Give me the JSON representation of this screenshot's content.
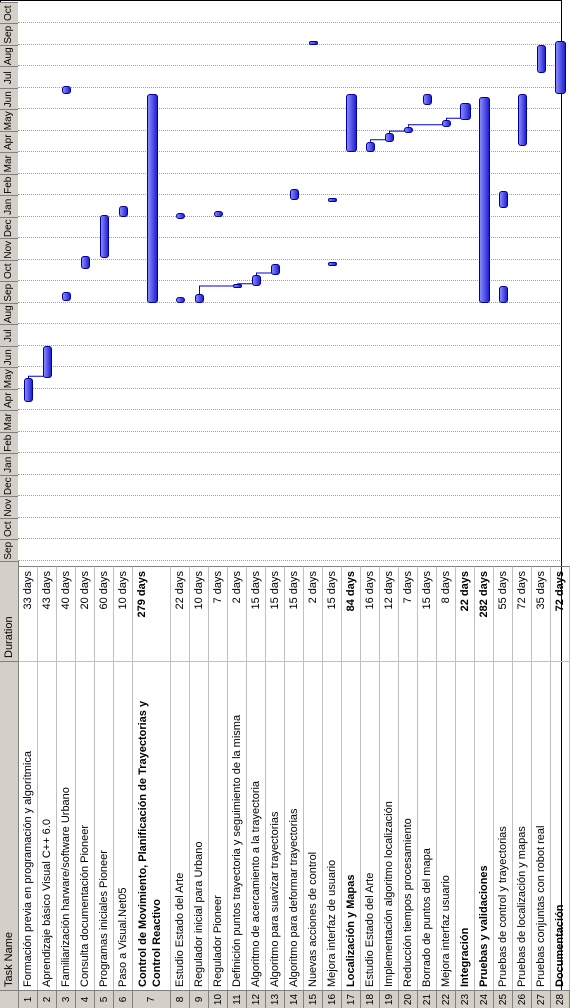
{
  "header": {
    "id": "",
    "task_name": "Task Name",
    "duration": "Duration"
  },
  "months": [
    "Sep",
    "Oct",
    "Nov",
    "Dec",
    "Jan",
    "Feb",
    "Mar",
    "Apr",
    "May",
    "Jun",
    "Jul",
    "Aug",
    "Sep",
    "Oct",
    "Nov",
    "Dec",
    "Jan",
    "Feb",
    "Mar",
    "Apr",
    "May",
    "Jun",
    "Jul",
    "Aug",
    "Sep",
    "Oct"
  ],
  "tasks": [
    {
      "id": "1",
      "name": "Formación previa en programación y algorítmica",
      "duration": "33 days",
      "start": 7.4,
      "end": 8.5
    },
    {
      "id": "2",
      "name": "Aprendizaje básico Visual C++ 6.0",
      "duration": "43 days",
      "start": 8.5,
      "end": 10.0
    },
    {
      "id": "3",
      "name": "Familiarización harware/software Urbano",
      "duration": "40 days",
      "start": 12.1,
      "end": 12.5,
      "start2": 21.7,
      "end2": 22.1
    },
    {
      "id": "4",
      "name": "Consulta documentación Pioneer",
      "duration": "20 days",
      "start": 13.6,
      "end": 14.2
    },
    {
      "id": "5",
      "name": "Programas iniciales Pioneer",
      "duration": "60 days",
      "start": 14.1,
      "end": 16.1
    },
    {
      "id": "6",
      "name": "Paso a Visual.Net05",
      "duration": "10 days",
      "start": 16.0,
      "end": 16.5
    },
    {
      "id": "7",
      "name": "Control de Movimiento, Planificación de Trayectorias y Control Reactivo",
      "duration": "279 days",
      "start": 12.0,
      "end": 21.7
    },
    {
      "id": "8",
      "name": "Estudio Estado del Arte",
      "duration": "22 days",
      "start": 12.0,
      "end": 12.3,
      "start2": 15.9,
      "end2": 16.2
    },
    {
      "id": "9",
      "name": "Regulador inicial para Urbano",
      "duration": "10 days",
      "start": 12.0,
      "end": 12.4
    },
    {
      "id": "10",
      "name": "Regulador Pioneer",
      "duration": "7 days",
      "start": 16.0,
      "end": 16.3
    },
    {
      "id": "11",
      "name": "Definición puntos trayectoria y seguimiento de la misma",
      "duration": "2 days",
      "start": 12.7,
      "end": 12.9
    },
    {
      "id": "12",
      "name": "Algoritmo de acercamiento a la trayectoria",
      "duration": "15 days",
      "start": 12.8,
      "end": 13.3
    },
    {
      "id": "13",
      "name": "Algoritmo para suavizar trayectorias",
      "duration": "15 days",
      "start": 13.3,
      "end": 13.8
    },
    {
      "id": "14",
      "name": "Algoritmo para deformar trayectorias",
      "duration": "15 days",
      "start": 16.8,
      "end": 17.3
    },
    {
      "id": "15",
      "name": "Nuevas acciones de control",
      "duration": "2 days",
      "start": 24.0,
      "end": 24.2
    },
    {
      "id": "16",
      "name": "Mejora interfaz de usuario",
      "duration": "15 days",
      "start": 13.7,
      "end": 13.9,
      "start2": 16.7,
      "end2": 16.9
    },
    {
      "id": "17",
      "name": "Localización y Mapas",
      "duration": "84 days",
      "start": 19.0,
      "end": 21.7
    },
    {
      "id": "18",
      "name": "Estudio Estado del Arte",
      "duration": "16 days",
      "start": 19.0,
      "end": 19.5
    },
    {
      "id": "19",
      "name": "Implementación algoritmo localización",
      "duration": "12 days",
      "start": 19.5,
      "end": 19.9
    },
    {
      "id": "20",
      "name": "Reducción tiempos procesamiento",
      "duration": "7 days",
      "start": 19.9,
      "end": 20.2
    },
    {
      "id": "21",
      "name": "Borrado de puntos del mapa",
      "duration": "15 days",
      "start": 21.2,
      "end": 21.7
    },
    {
      "id": "22",
      "name": "Mejora interfaz usuario",
      "duration": "8 days",
      "start": 20.2,
      "end": 20.5
    },
    {
      "id": "23",
      "name": "Integración",
      "duration": "22 days",
      "start": 20.5,
      "end": 21.3
    },
    {
      "id": "24",
      "name": "Pruebas y validaciones",
      "duration": "282 days",
      "start": 12.0,
      "end": 21.6
    },
    {
      "id": "25",
      "name": "Pruebas de control y trayectorias",
      "duration": "55 days",
      "start": 12.0,
      "end": 12.8,
      "start2": 16.4,
      "end2": 17.2
    },
    {
      "id": "26",
      "name": "Pruebas de localización y mapas",
      "duration": "72 days",
      "start": 19.3,
      "end": 21.7
    },
    {
      "id": "27",
      "name": "Pruebas conjuntas con robot real",
      "duration": "35 days",
      "start": 22.7,
      "end": 24.0
    },
    {
      "id": "28",
      "name": "Documentación",
      "duration": "72 days",
      "start": 21.7,
      "end": 24.2
    }
  ],
  "bold_rows": [
    "7",
    "17",
    "23",
    "24",
    "28"
  ]
}
